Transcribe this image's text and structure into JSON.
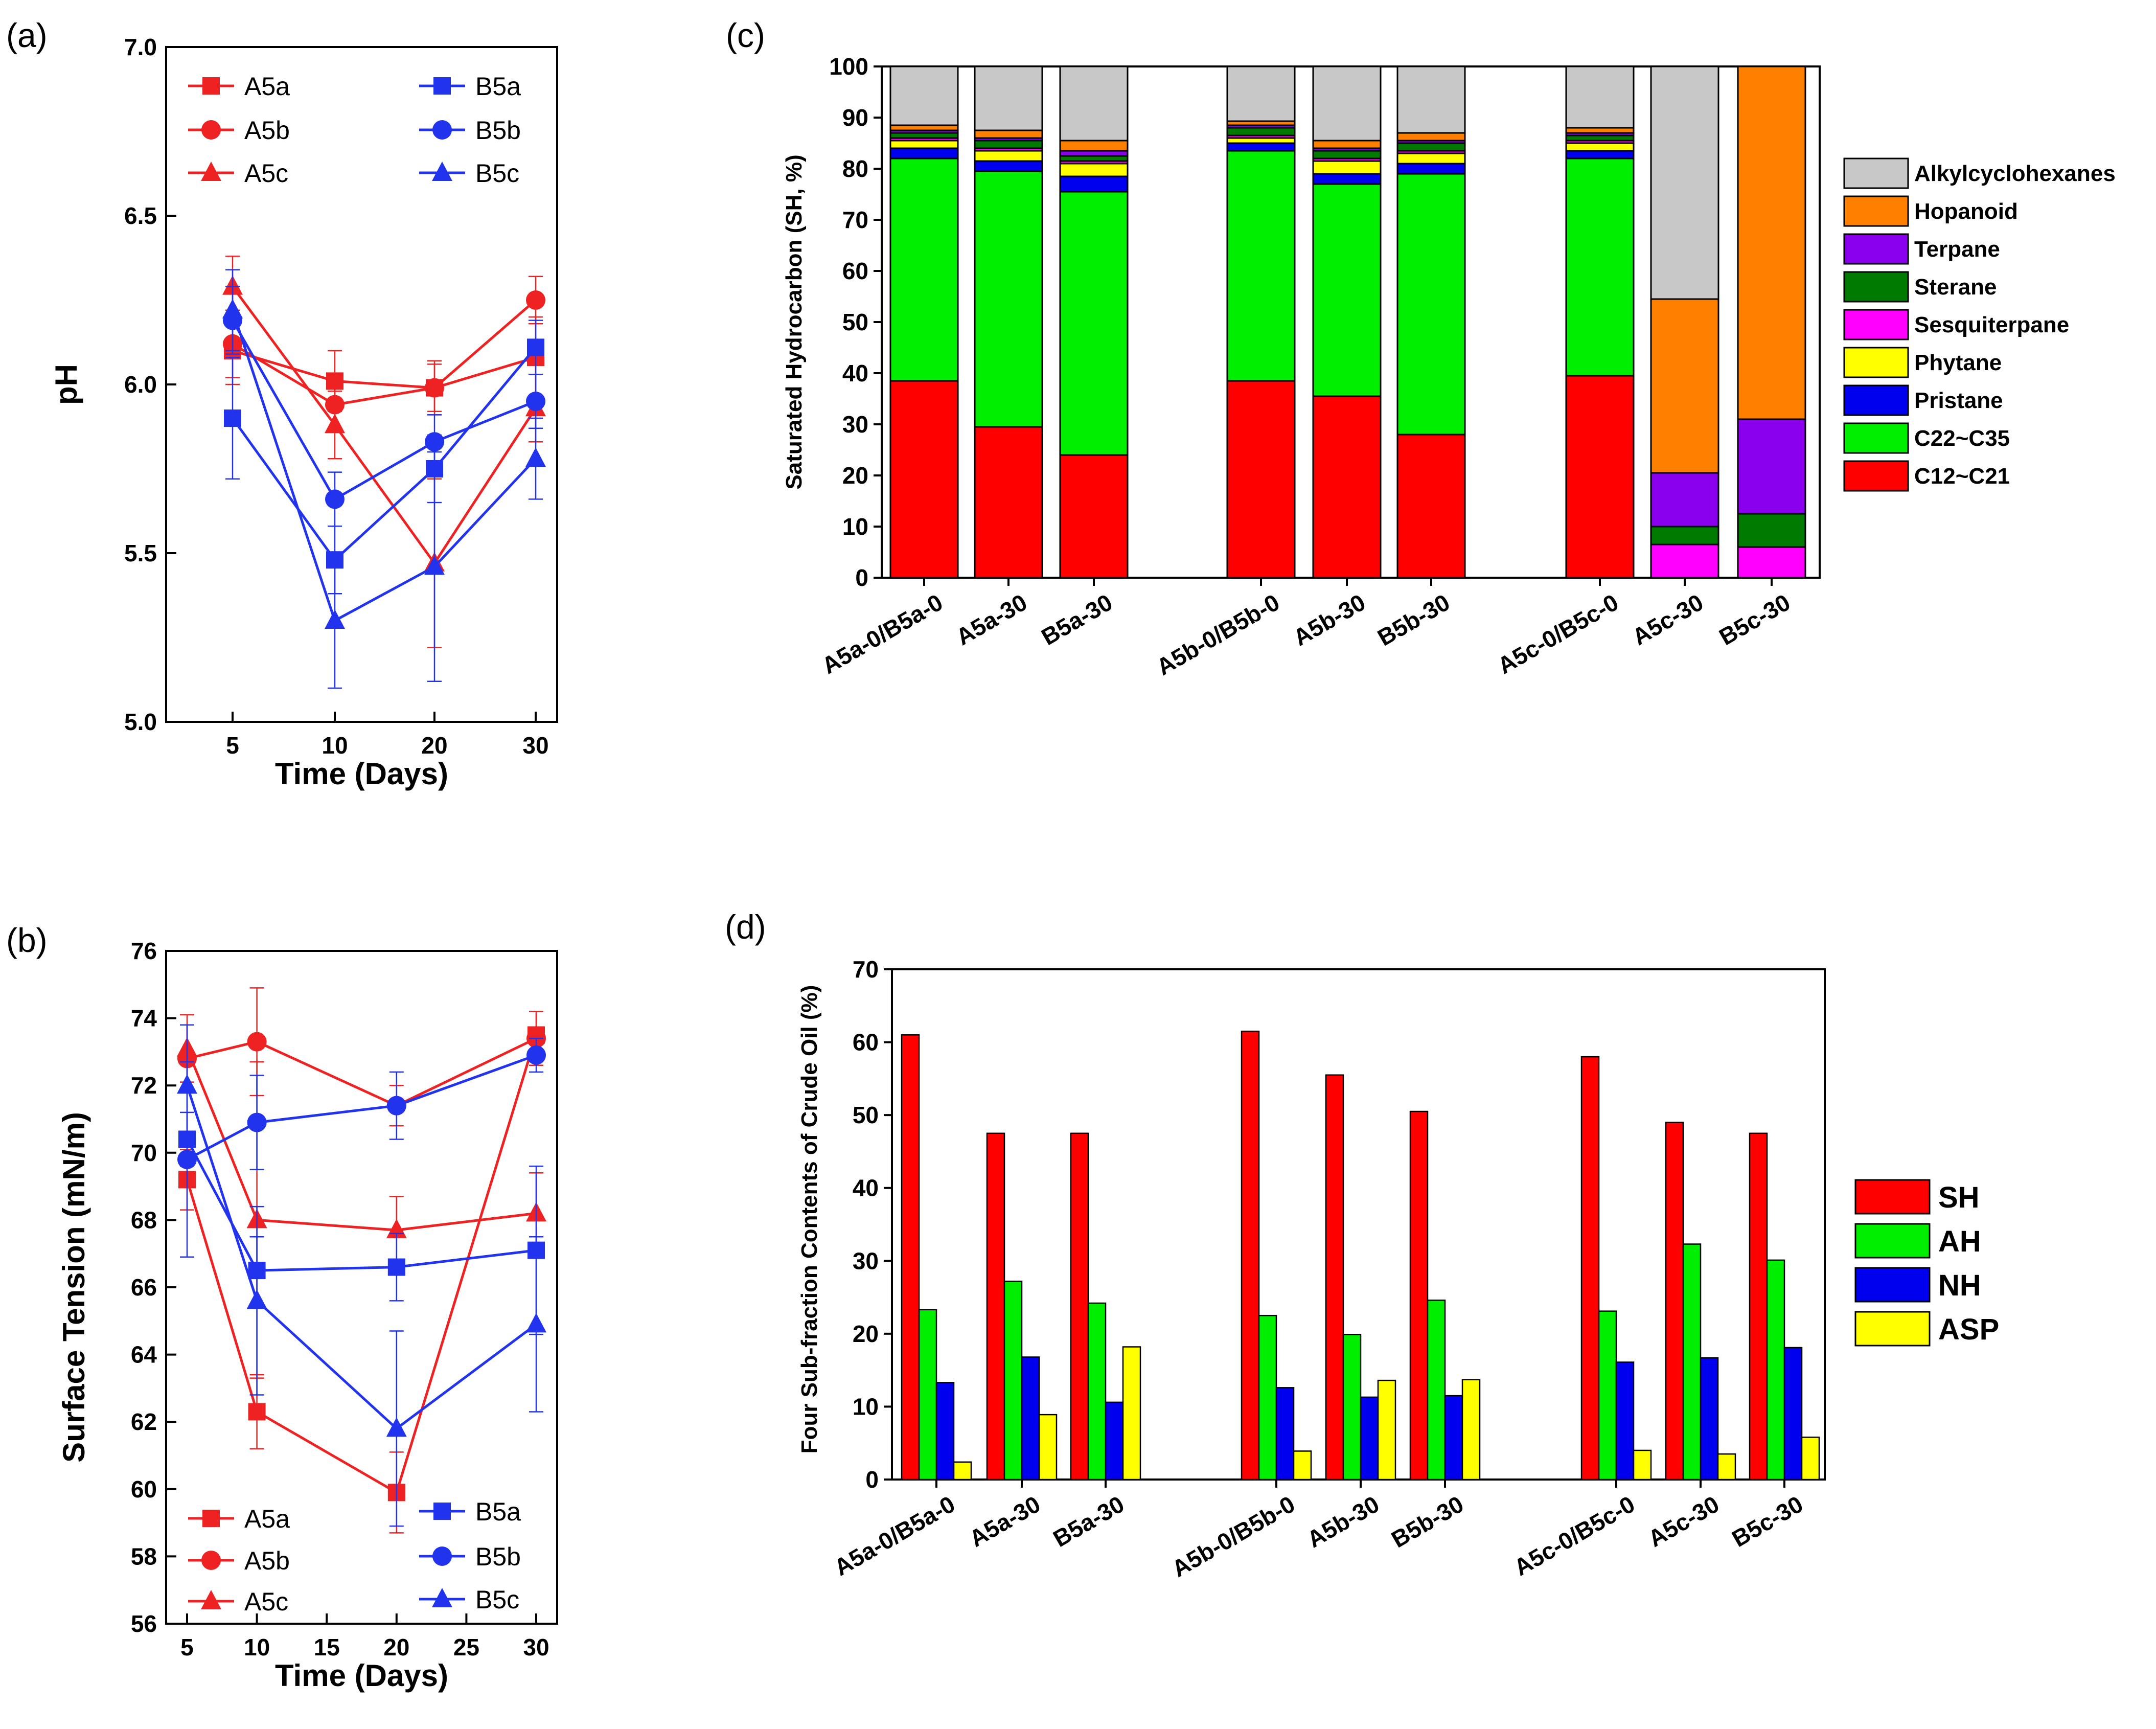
{
  "colors": {
    "red": "#ee2222",
    "blue": "#2233ee"
  },
  "chart_data": [
    {
      "panel": "(a)",
      "type": "line",
      "xlabel": "Time (Days)",
      "ylabel": "pH",
      "x": [
        5,
        10,
        20,
        30
      ],
      "x_tick_labels": [
        "5",
        "10",
        "20",
        "30"
      ],
      "y_tick_labels": [
        "5.0",
        "5.5",
        "6.0",
        "6.5",
        "7.0"
      ],
      "ylim": [
        5.0,
        7.0
      ],
      "series": [
        {
          "name": "A5a",
          "color": "#ee2222",
          "marker": "square",
          "values": [
            6.1,
            6.01,
            5.99,
            6.08
          ],
          "err": [
            0.1,
            0.09,
            0.07,
            0.12
          ]
        },
        {
          "name": "A5b",
          "color": "#ee2222",
          "marker": "circle",
          "values": [
            6.12,
            5.94,
            5.99,
            6.25
          ],
          "err": [
            0.1,
            0.08,
            0.08,
            0.07
          ]
        },
        {
          "name": "A5c",
          "color": "#ee2222",
          "marker": "triangle",
          "values": [
            6.29,
            5.88,
            5.47,
            5.93
          ],
          "err": [
            0.09,
            0.1,
            0.25,
            0.1
          ]
        },
        {
          "name": "B5a",
          "color": "#2233ee",
          "marker": "square",
          "values": [
            5.9,
            5.48,
            5.75,
            6.11
          ],
          "err": [
            0.18,
            0.1,
            0.1,
            0.08
          ]
        },
        {
          "name": "B5b",
          "color": "#2233ee",
          "marker": "circle",
          "values": [
            6.19,
            5.66,
            5.83,
            5.95
          ],
          "err": [
            0.1,
            0.08,
            0.08,
            0.08
          ]
        },
        {
          "name": "B5c",
          "color": "#2233ee",
          "marker": "triangle",
          "values": [
            6.22,
            5.3,
            5.46,
            5.78
          ],
          "err": [
            0.12,
            0.2,
            0.34,
            0.12
          ]
        }
      ]
    },
    {
      "panel": "(b)",
      "type": "line",
      "xlabel": "Time (Days)",
      "ylabel": "Surface Tension (mN/m)",
      "x": [
        5,
        10,
        20,
        30
      ],
      "xlim": [
        3.5,
        31.5
      ],
      "x_ticks": [
        5,
        10,
        15,
        20,
        25,
        30
      ],
      "x_tick_labels": [
        "5",
        "10",
        "15",
        "20",
        "25",
        "30"
      ],
      "ylim": [
        56,
        76
      ],
      "y_ticks": [
        56,
        58,
        60,
        62,
        64,
        66,
        68,
        70,
        72,
        74,
        76
      ],
      "y_tick_labels": [
        "56",
        "58",
        "60",
        "62",
        "64",
        "66",
        "68",
        "70",
        "72",
        "74",
        "76"
      ],
      "series": [
        {
          "name": "A5a",
          "color": "#ee2222",
          "marker": "square",
          "values": [
            69.2,
            62.3,
            59.9,
            73.5
          ],
          "err": [
            0.9,
            1.1,
            1.2,
            0.7
          ]
        },
        {
          "name": "A5b",
          "color": "#ee2222",
          "marker": "circle",
          "values": [
            72.8,
            73.3,
            71.4,
            73.4
          ],
          "err": [
            1.0,
            1.6,
            0.6,
            0.8
          ]
        },
        {
          "name": "A5c",
          "color": "#ee2222",
          "marker": "triangle",
          "values": [
            73.1,
            68.0,
            67.7,
            68.2
          ],
          "err": [
            1.0,
            4.7,
            1.0,
            1.2
          ]
        },
        {
          "name": "B5a",
          "color": "#2233ee",
          "marker": "square",
          "values": [
            70.4,
            66.5,
            66.6,
            67.1
          ],
          "err": [
            0.8,
            1.0,
            1.0,
            2.5
          ]
        },
        {
          "name": "B5b",
          "color": "#2233ee",
          "marker": "circle",
          "values": [
            69.8,
            70.9,
            71.4,
            72.9
          ],
          "err": [
            2.9,
            1.4,
            1.0,
            0.5
          ]
        },
        {
          "name": "B5c",
          "color": "#2233ee",
          "marker": "triangle",
          "values": [
            72.0,
            65.6,
            61.8,
            64.9
          ],
          "err": [
            1.8,
            2.8,
            2.9,
            2.6
          ]
        }
      ]
    },
    {
      "panel": "(c)",
      "type": "bar",
      "stacked": true,
      "ylabel": "Saturated Hydrocarbon (SH, %)",
      "ylim": [
        0,
        100
      ],
      "y_ticks": [
        0,
        10,
        20,
        30,
        40,
        50,
        60,
        70,
        80,
        90,
        100
      ],
      "y_tick_labels": [
        "0",
        "10",
        "20",
        "30",
        "40",
        "50",
        "60",
        "70",
        "80",
        "90",
        "100"
      ],
      "categories": [
        "A5a-0/B5a-0",
        "A5a-30",
        "B5a-30",
        "A5b-0/B5b-0",
        "A5b-30",
        "B5b-30",
        "A5c-0/B5c-0",
        "A5c-30",
        "B5c-30"
      ],
      "legend_order": [
        "Alkylcyclohexanes",
        "Hopanoid",
        "Terpane",
        "Sterane",
        "Sesquiterpane",
        "Phytane",
        "Pristane",
        "C22~C35",
        "C12~C21"
      ],
      "series": [
        {
          "name": "C12~C21",
          "color": "#ff0000",
          "values": [
            38.5,
            29.5,
            24.0,
            38.5,
            35.5,
            28.0,
            39.5,
            0,
            0
          ]
        },
        {
          "name": "C22~C35",
          "color": "#00ee00",
          "values": [
            43.5,
            50.0,
            51.5,
            45.0,
            41.5,
            51.0,
            42.5,
            0,
            0
          ]
        },
        {
          "name": "Pristane",
          "color": "#0000ee",
          "values": [
            2.0,
            2.0,
            3.0,
            1.5,
            2.0,
            2.0,
            1.5,
            0,
            0
          ]
        },
        {
          "name": "Phytane",
          "color": "#ffff00",
          "values": [
            1.5,
            2.0,
            2.5,
            1.0,
            2.5,
            2.0,
            1.5,
            0,
            0
          ]
        },
        {
          "name": "Sesquiterpane",
          "color": "#ff00ff",
          "values": [
            0.5,
            0.5,
            0.5,
            0.5,
            0.5,
            0.5,
            0.5,
            6.5,
            6.0
          ]
        },
        {
          "name": "Sterane",
          "color": "#007a00",
          "values": [
            1.0,
            1.5,
            1.0,
            1.5,
            1.5,
            1.5,
            1.0,
            3.5,
            6.5
          ]
        },
        {
          "name": "Terpane",
          "color": "#8a00ee",
          "values": [
            0.5,
            0.5,
            1.0,
            0.5,
            0.5,
            0.5,
            0.5,
            10.5,
            18.5
          ]
        },
        {
          "name": "Hopanoid",
          "color": "#ff8000",
          "values": [
            1.0,
            1.5,
            2.0,
            0.8,
            1.5,
            1.5,
            1.0,
            34.0,
            69.0
          ]
        },
        {
          "name": "Alkylcyclohexanes",
          "color": "#c8c8c8",
          "values": [
            11.5,
            12.5,
            14.5,
            10.7,
            14.5,
            13.0,
            12.0,
            45.5,
            0
          ]
        }
      ]
    },
    {
      "panel": "(d)",
      "type": "bar",
      "stacked": false,
      "ylabel": "Four Sub-fraction Contents of Crude Oil (%)",
      "ylim": [
        0,
        70
      ],
      "y_ticks": [
        0,
        10,
        20,
        30,
        40,
        50,
        60,
        70
      ],
      "y_tick_labels": [
        "0",
        "10",
        "20",
        "30",
        "40",
        "50",
        "60",
        "70"
      ],
      "categories": [
        "A5a-0/B5a-0",
        "A5a-30",
        "B5a-30",
        "A5b-0/B5b-0",
        "A5b-30",
        "B5b-30",
        "A5c-0/B5c-0",
        "A5c-30",
        "B5c-30"
      ],
      "series": [
        {
          "name": "SH",
          "color": "#ff0000",
          "values": [
            61.0,
            47.5,
            47.5,
            61.5,
            55.5,
            50.5,
            58.0,
            49.0,
            47.5
          ]
        },
        {
          "name": "AH",
          "color": "#00ee00",
          "values": [
            23.3,
            27.2,
            24.2,
            22.5,
            19.9,
            24.6,
            23.1,
            32.3,
            30.1
          ]
        },
        {
          "name": "NH",
          "color": "#0000ee",
          "values": [
            13.3,
            16.8,
            10.6,
            12.6,
            11.3,
            11.5,
            16.1,
            16.7,
            18.1
          ]
        },
        {
          "name": "ASP",
          "color": "#ffff00",
          "values": [
            2.4,
            8.9,
            18.2,
            3.9,
            13.6,
            13.7,
            4.0,
            3.5,
            5.8
          ]
        }
      ]
    }
  ]
}
